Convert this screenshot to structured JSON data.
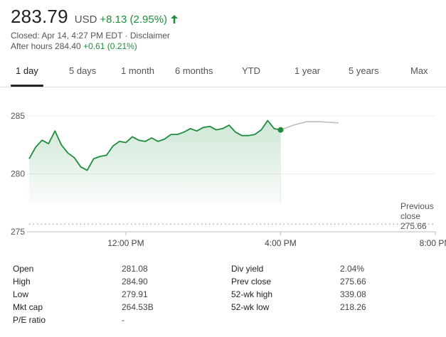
{
  "quote": {
    "price": "283.79",
    "currency": "USD",
    "change": "+8.13 (2.95%)",
    "closed": "Closed: Apr 14, 4:27 PM EDT",
    "separator": " · ",
    "disclaimer": "Disclaimer",
    "after_hours_label": "After hours 284.40",
    "after_hours_change": "+0.61 (0.21%)",
    "up_arrow_icon": "arrow-up",
    "accent_color": "#1e8e3e"
  },
  "tabs": [
    {
      "label": "1 day",
      "active": true
    },
    {
      "label": "5 days"
    },
    {
      "label": "1 month"
    },
    {
      "label": "6 months"
    },
    {
      "label": "YTD"
    },
    {
      "label": "1 year"
    },
    {
      "label": "5 years"
    },
    {
      "label": "Max"
    }
  ],
  "chart_data": {
    "type": "area",
    "x_ticks": [
      "12:00 PM",
      "4:00 PM",
      "8:00 PM"
    ],
    "y_ticks": [
      "275",
      "280",
      "285"
    ],
    "ylim": [
      275,
      286
    ],
    "xlim": [
      "9:30",
      "20:00"
    ],
    "previous_close": {
      "label_line1": "Previous",
      "label_line2": "close",
      "value": "275.66"
    },
    "series": [
      {
        "x": [
          "9:30",
          "9:40",
          "9:50",
          "10:00",
          "10:10",
          "10:20",
          "10:30",
          "10:40",
          "10:50",
          "11:00",
          "11:10",
          "11:20",
          "11:30",
          "11:40",
          "11:50",
          "12:00",
          "12:10",
          "12:20",
          "12:30",
          "12:40",
          "12:50",
          "13:00",
          "13:10",
          "13:20",
          "13:30",
          "13:40",
          "13:50",
          "14:00",
          "14:10",
          "14:20",
          "14:30",
          "14:40",
          "14:50",
          "15:00",
          "15:10",
          "15:20",
          "15:30",
          "15:40",
          "15:50",
          "16:00"
        ],
        "y": [
          281.3,
          282.3,
          282.9,
          282.6,
          283.7,
          282.5,
          281.8,
          281.4,
          280.6,
          280.3,
          281.3,
          281.5,
          281.6,
          282.4,
          282.8,
          282.7,
          283.2,
          282.9,
          282.8,
          283.1,
          282.8,
          283.0,
          283.4,
          283.4,
          283.6,
          283.9,
          283.7,
          284.0,
          284.1,
          283.8,
          283.9,
          284.2,
          283.6,
          283.3,
          283.3,
          283.4,
          283.8,
          284.6,
          283.9,
          283.79
        ],
        "color": "#1e8e3e"
      },
      {
        "name": "After hours",
        "x": [
          "16:00",
          "16:20",
          "16:40",
          "17:00",
          "17:15",
          "17:30"
        ],
        "y": [
          283.79,
          284.2,
          284.5,
          284.5,
          284.45,
          284.4
        ],
        "color": "#bdbdbd"
      }
    ],
    "grid": true
  },
  "stats": {
    "left": [
      {
        "label": "Open",
        "value": "281.08"
      },
      {
        "label": "High",
        "value": "284.90"
      },
      {
        "label": "Low",
        "value": "279.91"
      },
      {
        "label": "Mkt cap",
        "value": "264.53B"
      },
      {
        "label": "P/E ratio",
        "value": "-"
      }
    ],
    "right": [
      {
        "label": "Div yield",
        "value": "2.04%"
      },
      {
        "label": "Prev close",
        "value": "275.66"
      },
      {
        "label": "52-wk high",
        "value": "339.08"
      },
      {
        "label": "52-wk low",
        "value": "218.26"
      }
    ]
  }
}
